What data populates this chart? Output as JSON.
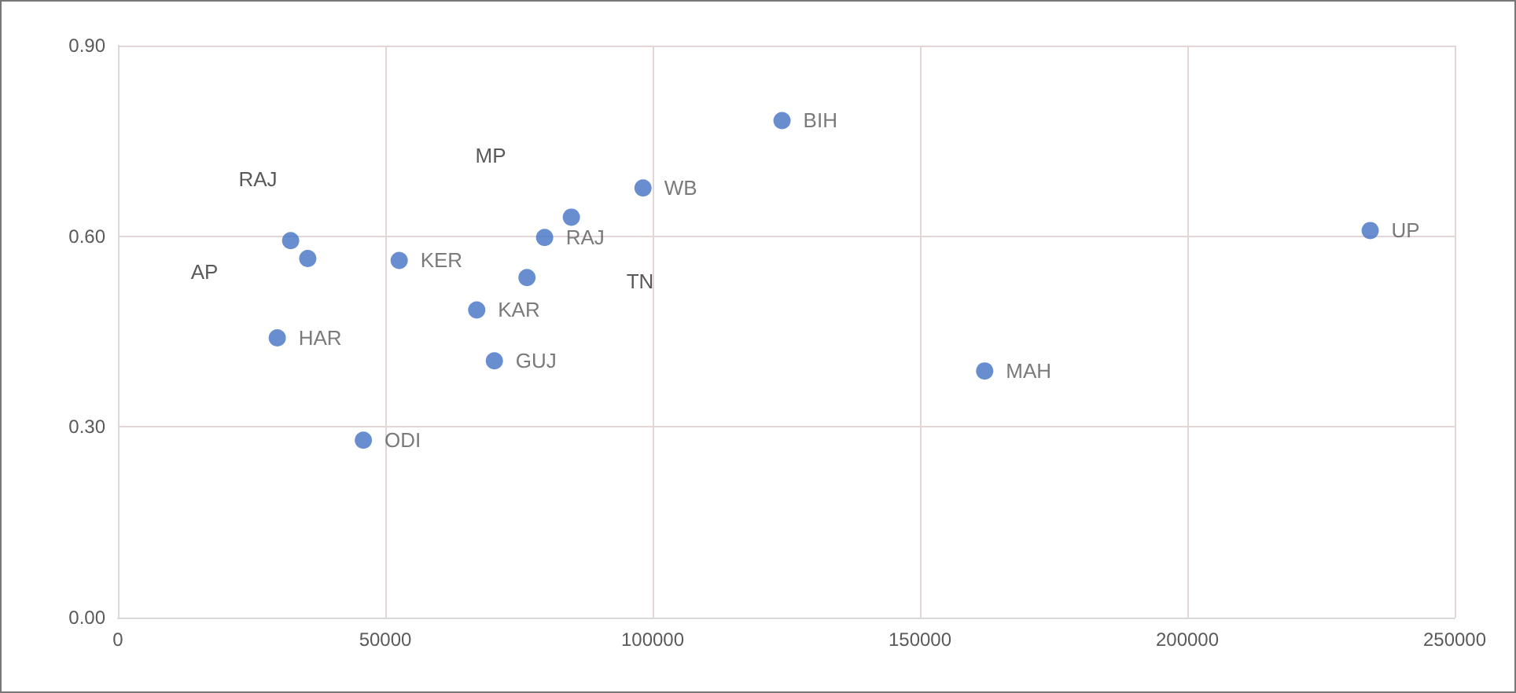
{
  "chart_data": {
    "type": "scatter",
    "x": [
      32300,
      35500,
      29800,
      45900,
      52600,
      67100,
      70400,
      76500,
      79800,
      84800,
      98200,
      124200,
      162100,
      234200
    ],
    "values": [
      0.593,
      0.565,
      0.44,
      0.279,
      0.562,
      0.484,
      0.404,
      0.535,
      0.598,
      0.63,
      0.676,
      0.782,
      0.388,
      0.609
    ],
    "value_labels": [
      null,
      null,
      "HAR",
      "ODI",
      "KER",
      "KAR",
      "GUJ",
      null,
      "RAJ",
      null,
      "WB",
      "BIH",
      "MAH",
      "UP"
    ],
    "color": "#4472c4",
    "annotations": [
      "RAJ",
      "AP",
      "MP",
      "TN"
    ],
    "xlim": [
      0,
      250000
    ],
    "xticks": [
      0,
      50000,
      100000,
      150000,
      200000,
      250000
    ],
    "ylim": [
      0,
      0.9
    ],
    "yticks": [
      {
        "value": 0,
        "label": "0.00"
      },
      {
        "value": 0.3,
        "label": "0.30"
      },
      {
        "value": 0.6,
        "label": "0.60"
      },
      {
        "value": 0.9,
        "label": "0.90"
      }
    ],
    "grid": true,
    "marker": "circle"
  }
}
